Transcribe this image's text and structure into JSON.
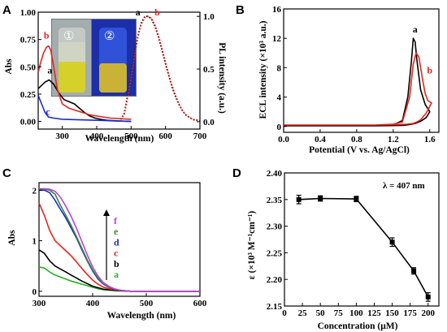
{
  "chart_data": [
    {
      "panel": "A",
      "type": "line",
      "xlabel": "Wavelength (nm)",
      "ylabel": "Abs",
      "y2label": "PL intensity (a.u.)",
      "xlim": [
        230,
        700
      ],
      "xticks": [
        300,
        400,
        500,
        600,
        700
      ],
      "ylim": [
        -0.07,
        1.0
      ],
      "yticks": [
        0.0,
        0.25,
        0.5,
        0.75,
        1.0
      ],
      "ytick_labels": [
        "0.00",
        "0.25",
        "0.50",
        "0.75",
        "1.00"
      ],
      "y2lim": [
        -0.07,
        1.04
      ],
      "y2ticks": [
        0.0,
        0.5,
        1.0
      ],
      "y2tick_labels": [
        "0.0",
        "0.5",
        "1.0"
      ],
      "inset_labels": [
        "①",
        "②"
      ],
      "series": [
        {
          "name": "a",
          "axis": "left",
          "color": "#000000",
          "style": "solid",
          "x": [
            230,
            240,
            250,
            262,
            275,
            290,
            305,
            320,
            335,
            350,
            365,
            380,
            395,
            410,
            430,
            460,
            500
          ],
          "y": [
            0.3,
            0.33,
            0.36,
            0.38,
            0.34,
            0.26,
            0.2,
            0.18,
            0.16,
            0.12,
            0.08,
            0.05,
            0.03,
            0.02,
            0.01,
            0.005,
            0.0
          ]
        },
        {
          "name": "b",
          "axis": "left",
          "color": "#e8231b",
          "style": "solid",
          "x": [
            230,
            238,
            246,
            254,
            260,
            266,
            275,
            285,
            300,
            320,
            340,
            360,
            380,
            400,
            440,
            500
          ],
          "y": [
            0.45,
            0.55,
            0.63,
            0.68,
            0.69,
            0.66,
            0.5,
            0.3,
            0.16,
            0.12,
            0.1,
            0.08,
            0.06,
            0.05,
            0.03,
            0.02
          ]
        },
        {
          "name": "c",
          "axis": "left",
          "color": "#1c2bd6",
          "style": "solid",
          "x": [
            230,
            240,
            250,
            260,
            275,
            300,
            350,
            400,
            450,
            500
          ],
          "y": [
            0.24,
            0.16,
            0.08,
            0.04,
            0.03,
            0.02,
            0.015,
            0.01,
            0.005,
            0.0
          ]
        },
        {
          "name": "a",
          "axis": "right",
          "color": "#000000",
          "style": "dotted",
          "x": [
            470,
            480,
            490,
            500,
            510,
            520,
            530,
            540,
            550,
            560,
            570,
            580,
            590,
            600,
            610,
            620,
            630,
            640,
            650,
            660,
            680,
            700
          ],
          "y": [
            0.02,
            0.08,
            0.25,
            0.45,
            0.65,
            0.82,
            0.94,
            1.0,
            1.0,
            0.97,
            0.9,
            0.8,
            0.68,
            0.55,
            0.43,
            0.32,
            0.23,
            0.16,
            0.1,
            0.06,
            0.02,
            0.01
          ]
        },
        {
          "name": "b",
          "axis": "right",
          "color": "#e8231b",
          "style": "dotted",
          "x": [
            470,
            480,
            490,
            500,
            510,
            520,
            530,
            540,
            550,
            560,
            570,
            580,
            590,
            600,
            610,
            620,
            630,
            640,
            650,
            660,
            680,
            700
          ],
          "y": [
            0.02,
            0.07,
            0.23,
            0.43,
            0.63,
            0.81,
            0.93,
            0.99,
            1.0,
            0.98,
            0.91,
            0.81,
            0.69,
            0.56,
            0.44,
            0.33,
            0.24,
            0.16,
            0.1,
            0.06,
            0.02,
            0.01
          ]
        }
      ],
      "labels": [
        {
          "text": "a",
          "color": "#000000",
          "x": 264,
          "y": 0.44,
          "axis": "left"
        },
        {
          "text": "b",
          "color": "#e8231b",
          "x": 254,
          "y": 0.76,
          "axis": "left"
        },
        {
          "text": "c",
          "color": "#1c2bd6",
          "x": 258,
          "y": 0.06,
          "axis": "left"
        },
        {
          "text": "a",
          "color": "#000000",
          "x": 520,
          "y": 1.01,
          "axis": "right"
        },
        {
          "text": "b",
          "color": "#e8231b",
          "x": 576,
          "y": 1.01,
          "axis": "right"
        }
      ]
    },
    {
      "panel": "B",
      "type": "line",
      "xlabel": "Potential (V vs. Ag/AgCl)",
      "ylabel": "ECL intensity (×10³ a.u.)",
      "xlim": [
        0,
        1.7
      ],
      "xticks": [
        0.0,
        0.4,
        0.8,
        1.2,
        1.6
      ],
      "xtick_labels": [
        "0.0",
        "0.4",
        "0.8",
        "1.2",
        "1.6"
      ],
      "ylim": [
        -0.8,
        16
      ],
      "yticks": [
        0,
        4,
        8,
        12,
        16
      ],
      "series": [
        {
          "name": "a",
          "color": "#000000",
          "x": [
            0,
            0.5,
            1.0,
            1.2,
            1.3,
            1.36,
            1.4,
            1.42,
            1.44,
            1.46,
            1.5,
            1.55,
            1.6,
            1.56,
            1.5,
            1.44,
            1.4,
            1.35,
            1.3,
            1.2,
            1.0,
            0.5,
            0
          ],
          "y": [
            0.1,
            0.1,
            0.1,
            0.2,
            0.8,
            4.0,
            9.0,
            12.0,
            11.5,
            9.0,
            5.0,
            3.0,
            2.0,
            1.2,
            0.7,
            0.4,
            0.3,
            0.2,
            0.15,
            0.12,
            0.1,
            0.1,
            0.1
          ]
        },
        {
          "name": "b",
          "color": "#e8231b",
          "x": [
            0,
            0.5,
            1.0,
            1.2,
            1.3,
            1.38,
            1.42,
            1.45,
            1.48,
            1.52,
            1.55,
            1.58,
            1.62,
            1.56,
            1.5,
            1.46,
            1.42,
            1.35,
            1.25,
            1.0,
            0.5,
            0
          ],
          "y": [
            0.2,
            0.2,
            0.2,
            0.3,
            0.6,
            4.0,
            8.5,
            10.0,
            9.5,
            6.5,
            4.5,
            3.5,
            3.2,
            1.8,
            0.9,
            0.6,
            0.4,
            0.3,
            0.25,
            0.2,
            0.2,
            0.2
          ]
        }
      ],
      "labels": [
        {
          "text": "a",
          "color": "#000000",
          "x": 1.44,
          "y": 12.8
        },
        {
          "text": "b",
          "color": "#e8231b",
          "x": 1.6,
          "y": 7.2
        }
      ]
    },
    {
      "panel": "C",
      "type": "line",
      "xlabel": "Wavelength (nm)",
      "ylabel": "Abs",
      "xlim": [
        300,
        600
      ],
      "xticks": [
        300,
        400,
        500,
        600
      ],
      "ylim": [
        -0.1,
        2.15
      ],
      "yticks": [
        0,
        1,
        2
      ],
      "x": [
        300,
        310,
        320,
        330,
        340,
        350,
        360,
        370,
        380,
        390,
        400,
        410,
        420,
        430,
        440,
        450,
        460,
        470,
        480,
        500,
        550,
        600
      ],
      "series": [
        {
          "name": "a",
          "color": "#22b122",
          "y": [
            0.48,
            0.46,
            0.38,
            0.32,
            0.28,
            0.24,
            0.2,
            0.17,
            0.14,
            0.11,
            0.08,
            0.05,
            0.03,
            0.02,
            0.01,
            0.01,
            0.005,
            0.0,
            0.0,
            0.0,
            0.0,
            0.0
          ]
        },
        {
          "name": "b",
          "color": "#000000",
          "y": [
            0.82,
            0.75,
            0.6,
            0.5,
            0.44,
            0.38,
            0.32,
            0.26,
            0.2,
            0.15,
            0.1,
            0.07,
            0.04,
            0.03,
            0.02,
            0.01,
            0.005,
            0.0,
            0.0,
            0.0,
            0.0,
            0.0
          ]
        },
        {
          "name": "c",
          "color": "#e8231b",
          "y": [
            1.75,
            1.5,
            1.2,
            1.0,
            0.9,
            0.8,
            0.7,
            0.58,
            0.45,
            0.33,
            0.22,
            0.14,
            0.08,
            0.05,
            0.03,
            0.02,
            0.01,
            0.0,
            0.0,
            0.0,
            0.0,
            0.0
          ]
        },
        {
          "name": "d",
          "color": "#1c2bd6",
          "y": [
            2.0,
            2.0,
            1.95,
            1.8,
            1.62,
            1.45,
            1.25,
            1.05,
            0.82,
            0.6,
            0.4,
            0.24,
            0.14,
            0.08,
            0.04,
            0.02,
            0.01,
            0.0,
            0.0,
            0.0,
            0.0,
            0.0
          ]
        },
        {
          "name": "e",
          "color": "#3a8a2a",
          "y": [
            2.02,
            2.02,
            2.0,
            1.92,
            1.7,
            1.5,
            1.3,
            1.08,
            0.85,
            0.62,
            0.42,
            0.26,
            0.15,
            0.09,
            0.05,
            0.02,
            0.01,
            0.0,
            0.0,
            0.0,
            0.0,
            0.0
          ]
        },
        {
          "name": "f",
          "color": "#c03fd8",
          "y": [
            2.03,
            2.03,
            2.02,
            1.98,
            1.86,
            1.68,
            1.48,
            1.24,
            0.98,
            0.72,
            0.48,
            0.3,
            0.17,
            0.1,
            0.05,
            0.02,
            0.01,
            0.0,
            0.0,
            0.0,
            0.0,
            0.0
          ]
        }
      ],
      "legend_letters": [
        {
          "text": "f",
          "color": "#c03fd8"
        },
        {
          "text": "e",
          "color": "#3a8a2a"
        },
        {
          "text": "d",
          "color": "#1c2bd6"
        },
        {
          "text": "c",
          "color": "#e8231b"
        },
        {
          "text": "b",
          "color": "#000000"
        },
        {
          "text": "a",
          "color": "#22b122"
        }
      ]
    },
    {
      "panel": "D",
      "type": "scatter",
      "xlabel": "Concentration (μM)",
      "ylabel": "ε (×10³ M⁻¹cm⁻¹)",
      "annotation": "λ = 407 nm",
      "xlim": [
        0,
        215
      ],
      "xticks": [
        0,
        25,
        50,
        75,
        100,
        125,
        150,
        175,
        200
      ],
      "ylim": [
        2.15,
        2.4
      ],
      "yticks": [
        2.15,
        2.2,
        2.25,
        2.3,
        2.35,
        2.4
      ],
      "ytick_labels": [
        "2.15",
        "2.20",
        "2.25",
        "2.30",
        "2.35",
        "2.40"
      ],
      "x": [
        20,
        50,
        100,
        150,
        180,
        200
      ],
      "y": [
        2.35,
        2.352,
        2.351,
        2.27,
        2.216,
        2.167
      ],
      "err": [
        0.008,
        0.005,
        0.005,
        0.008,
        0.006,
        0.008
      ]
    }
  ]
}
